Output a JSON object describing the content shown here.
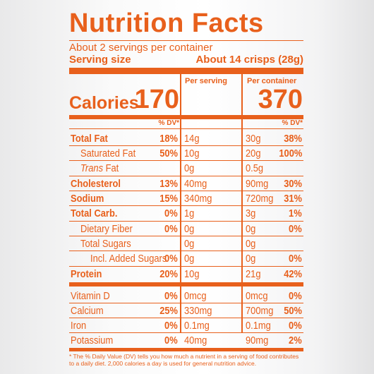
{
  "title": "Nutrition Facts",
  "servings_per_container": "About 2 servings per container",
  "serving_size_label": "Serving size",
  "serving_size_value": "About 14 crisps (28g)",
  "per_serving_label": "Per serving",
  "per_container_label": "Per container",
  "calories_label": "Calories",
  "calories_per_serving": "170",
  "calories_per_container": "370",
  "dv_header": "% DV*",
  "nutrients": [
    {
      "label": "Total Fat",
      "s_amt": "14g",
      "s_dv": "18%",
      "c_amt": "30g",
      "c_dv": "38%"
    },
    {
      "label": "Saturated Fat",
      "s_amt": "10g",
      "s_dv": "50%",
      "c_amt": "20g",
      "c_dv": "100%"
    },
    {
      "label_italic": "Trans",
      "label_rest": " Fat",
      "s_amt": "0g",
      "s_dv": "",
      "c_amt": "0.5g",
      "c_dv": ""
    },
    {
      "label": "Cholesterol",
      "s_amt": "40mg",
      "s_dv": "13%",
      "c_amt": "90mg",
      "c_dv": "30%"
    },
    {
      "label": "Sodium",
      "s_amt": "340mg",
      "s_dv": "15%",
      "c_amt": "720mg",
      "c_dv": "31%"
    },
    {
      "label": "Total Carb.",
      "s_amt": "1g",
      "s_dv": "0%",
      "c_amt": "3g",
      "c_dv": "1%"
    },
    {
      "label": "Dietary Fiber",
      "s_amt": "0g",
      "s_dv": "0%",
      "c_amt": "0g",
      "c_dv": "0%"
    },
    {
      "label": "Total Sugars",
      "s_amt": "0g",
      "s_dv": "",
      "c_amt": "0g",
      "c_dv": ""
    },
    {
      "label": "Incl. Added Sugars",
      "s_amt": "0g",
      "s_dv": "0%",
      "c_amt": "0g",
      "c_dv": "0%"
    },
    {
      "label": "Protein",
      "s_amt": "10g",
      "s_dv": "20%",
      "c_amt": "21g",
      "c_dv": "42%"
    },
    {
      "label": "Vitamin D",
      "s_amt": "0mcg",
      "s_dv": "0%",
      "c_amt": "0mcg",
      "c_dv": "0%"
    },
    {
      "label": "Calcium",
      "s_amt": "330mg",
      "s_dv": "25%",
      "c_amt": "700mg",
      "c_dv": "50%"
    },
    {
      "label": "Iron",
      "s_amt": "0.1mg",
      "s_dv": "0%",
      "c_amt": "0.1mg",
      "c_dv": "0%"
    },
    {
      "label": "Potassium",
      "s_amt": "40mg",
      "s_dv": "0%",
      "c_amt": "90mg",
      "c_dv": "2%"
    }
  ],
  "footnote": "* The % Daily Value (DV) tells you how much a nutrient in a serving of food contributes to a daily diet. 2,000 calories a day is used for general nutrition advice.",
  "colors": {
    "ink": "#e8601c"
  }
}
